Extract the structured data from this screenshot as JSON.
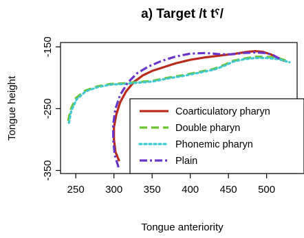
{
  "chart_data": {
    "type": "line",
    "title": "a) Target /t tˤ/",
    "xlabel": "Tongue anteriority",
    "ylabel": "Tongue height",
    "xlim": [
      230,
      540
    ],
    "ylim": [
      -355,
      -143
    ],
    "xticks": [
      250,
      300,
      350,
      400,
      450,
      500
    ],
    "yticks": [
      -150,
      -250,
      -350
    ],
    "grid": false,
    "legend": {
      "placement": "bottom-right",
      "box": true
    },
    "series": [
      {
        "name": "Coarticulatory pharyn",
        "color": "#bb2a1a",
        "style": "solid",
        "x": [
          307,
          302,
          300,
          300,
          303,
          308,
          316,
          326,
          338,
          350,
          365,
          380,
          400,
          420,
          440,
          460,
          475,
          485,
          495,
          505,
          515,
          524
        ],
        "y": [
          -335,
          -320,
          -300,
          -280,
          -260,
          -240,
          -222,
          -207,
          -196,
          -189,
          -183,
          -177,
          -171,
          -167,
          -164,
          -161,
          -158,
          -157,
          -158,
          -162,
          -168,
          -173
        ]
      },
      {
        "name": "Double pharyn",
        "color": "#6bc32e",
        "style": "dashed",
        "x": [
          240,
          243,
          250,
          262,
          278,
          295,
          312,
          330,
          350,
          370,
          390,
          410,
          430,
          445,
          455,
          470,
          485,
          500,
          515,
          530
        ],
        "y": [
          -270,
          -252,
          -233,
          -221,
          -214,
          -210,
          -209,
          -207,
          -205,
          -200,
          -196,
          -191,
          -186,
          -179,
          -173,
          -169,
          -166,
          -166,
          -168,
          -174
        ]
      },
      {
        "name": "Phonemic pharyn",
        "color": "#3ec8d0",
        "style": "dotted",
        "x": [
          241,
          244,
          251,
          263,
          279,
          296,
          313,
          331,
          351,
          371,
          391,
          411,
          431,
          446,
          456,
          471,
          486,
          501,
          516,
          530
        ],
        "y": [
          -273,
          -254,
          -235,
          -222,
          -215,
          -211,
          -210,
          -208,
          -206,
          -201,
          -197,
          -192,
          -187,
          -180,
          -174,
          -170,
          -168,
          -168,
          -170,
          -175
        ]
      },
      {
        "name": "Plain",
        "color": "#6a35c9",
        "style": "dashdot",
        "x": [
          306,
          301,
          299,
          299,
          302,
          308,
          318,
          330,
          345,
          362,
          380,
          400,
          420,
          440,
          455,
          470,
          485,
          498,
          508,
          518
        ],
        "y": [
          -345,
          -325,
          -300,
          -275,
          -250,
          -228,
          -208,
          -193,
          -182,
          -173,
          -166,
          -161,
          -160,
          -162,
          -162,
          -160,
          -159,
          -160,
          -163,
          -170
        ]
      }
    ]
  }
}
